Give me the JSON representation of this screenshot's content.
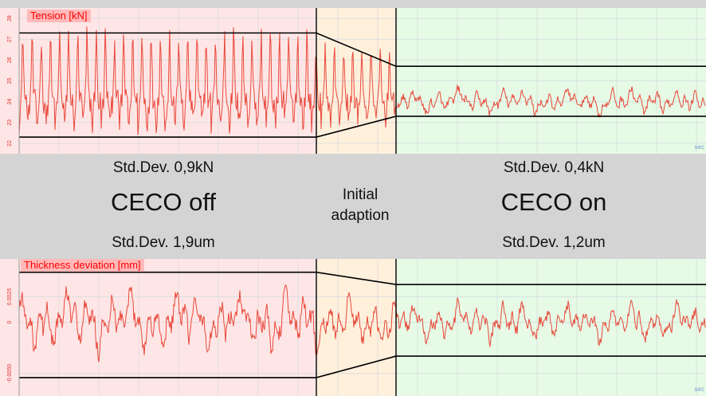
{
  "chart_data": [
    {
      "type": "line",
      "title": "Tension [kN]",
      "regions": [
        {
          "name": "CECO off",
          "color": "#ffe6e6",
          "x_range": [
            0,
            397
          ]
        },
        {
          "name": "Initial adaption",
          "color": "#fff0dc",
          "x_range": [
            397,
            497
          ]
        },
        {
          "name": "CECO on",
          "color": "#e6fae6",
          "x_range": [
            497,
            886
          ]
        }
      ],
      "ylim": [
        21.5,
        28.5
      ],
      "y_ticks": [
        "22",
        "23",
        "24",
        "25",
        "26",
        "27",
        "28"
      ],
      "series": [
        {
          "color": "#e8483a",
          "mean": 24.0,
          "segments": [
            {
              "x_range": [
                0,
                397
              ],
              "std_dev": 0.9,
              "peak_period": 11.5
            },
            {
              "x_range": [
                397,
                497
              ],
              "std_dev": 0.7,
              "peak_period": 11.5
            },
            {
              "x_range": [
                497,
                886
              ],
              "std_dev": 0.4,
              "peak_period": 0
            }
          ]
        }
      ],
      "envelope": {
        "upper": [
          [
            0,
            27.3
          ],
          [
            397,
            27.3
          ],
          [
            497,
            25.7
          ],
          [
            886,
            25.7
          ]
        ],
        "lower": [
          [
            0,
            22.3
          ],
          [
            397,
            22.3
          ],
          [
            497,
            23.3
          ],
          [
            886,
            23.3
          ]
        ]
      },
      "corner_label": "sec"
    },
    {
      "type": "line",
      "title": "Thickness deviation [mm]",
      "regions": [
        {
          "name": "CECO off",
          "color": "#ffe6e6",
          "x_range": [
            0,
            397
          ]
        },
        {
          "name": "Initial adaption",
          "color": "#fff0dc",
          "x_range": [
            397,
            497
          ]
        },
        {
          "name": "CECO on",
          "color": "#e6fae6",
          "x_range": [
            497,
            886
          ]
        }
      ],
      "ylim": [
        -0.0072,
        0.0062
      ],
      "y_ticks": [
        "0.0025",
        "0",
        "-0.0050"
      ],
      "y_tick_values": [
        0.0025,
        0,
        -0.005
      ],
      "series": [
        {
          "color": "#e8483a",
          "mean": 0,
          "segments": [
            {
              "x_range": [
                0,
                397
              ],
              "std_dev": 0.0019,
              "peak_period": 0
            },
            {
              "x_range": [
                397,
                497
              ],
              "std_dev": 0.0016,
              "peak_period": 0
            },
            {
              "x_range": [
                497,
                886
              ],
              "std_dev": 0.0012,
              "peak_period": 0
            }
          ]
        }
      ],
      "envelope": {
        "upper": [
          [
            0,
            0.0049
          ],
          [
            397,
            0.0049
          ],
          [
            497,
            0.0037
          ],
          [
            886,
            0.0037
          ]
        ],
        "lower": [
          [
            0,
            -0.0054
          ],
          [
            397,
            -0.0054
          ],
          [
            497,
            -0.0033
          ],
          [
            886,
            -0.0033
          ]
        ]
      },
      "corner_label": "sec"
    }
  ],
  "captions": {
    "tension_std_off": "Std.Dev. 0,9kN",
    "tension_std_on": "Std.Dev. 0,4kN",
    "ceco_off": "CECO off",
    "ceco_on": "CECO on",
    "initial_1": "Initial",
    "initial_2": "adaption",
    "thickness_std_off": "Std.Dev. 1,9um",
    "thickness_std_on": "Std.Dev. 1,2um"
  }
}
